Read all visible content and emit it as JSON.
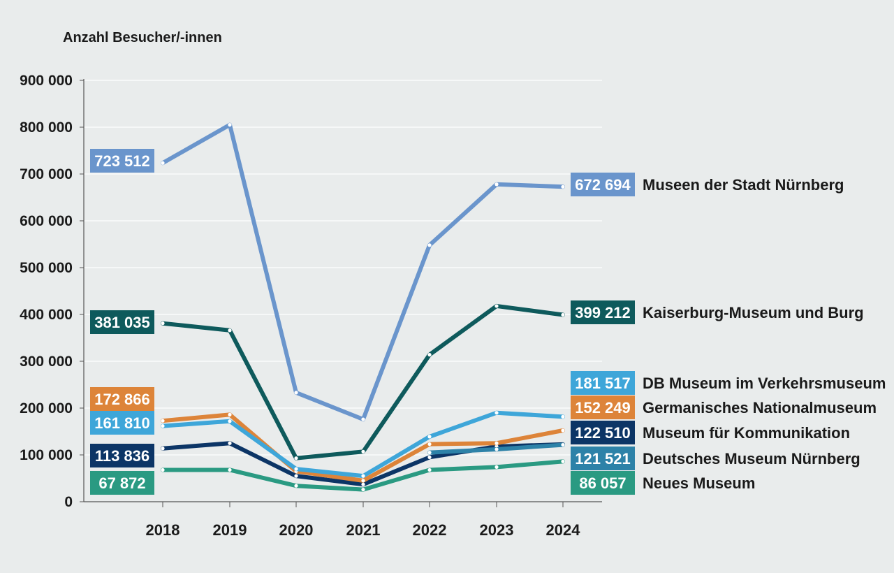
{
  "chart_data": {
    "type": "line",
    "ylabel": "Anzahl Besucher/-innen",
    "x": [
      "2018",
      "2019",
      "2020",
      "2021",
      "2022",
      "2023",
      "2024"
    ],
    "ylim": [
      0,
      900000
    ],
    "yticks": [
      0,
      100000,
      200000,
      300000,
      400000,
      500000,
      600000,
      700000,
      800000,
      900000
    ],
    "ytick_labels": [
      "0",
      "100 000",
      "200 000",
      "300 000",
      "400 000",
      "500 000",
      "600 000",
      "700 000",
      "800 000",
      "900 000"
    ],
    "grid": "horizontal",
    "series": [
      {
        "name": "Museen der Stadt Nürnberg",
        "color": "#6a95cc",
        "values": [
          723512,
          805000,
          233000,
          176000,
          548000,
          678000,
          672694
        ],
        "start_label": "723 512",
        "end_label": "672 694"
      },
      {
        "name": "Kaiserburg-Museum und Burg",
        "color": "#0e5a5c",
        "values": [
          381035,
          366000,
          93000,
          107000,
          314000,
          418000,
          399212
        ],
        "start_label": "381 035",
        "end_label": "399 212"
      },
      {
        "name": "DB Museum im Verkehrsmuseum",
        "color": "#3ea6d9",
        "values": [
          161810,
          172000,
          70000,
          55000,
          139000,
          190000,
          181517
        ],
        "start_label": "161 810",
        "end_label": "181 517"
      },
      {
        "name": "Germanisches Nationalmuseum",
        "color": "#dd8439",
        "values": [
          172866,
          186000,
          65000,
          45000,
          123000,
          125000,
          152249
        ],
        "start_label": "172 866",
        "end_label": "152 249"
      },
      {
        "name": "Museum für Kommunikation",
        "color": "#0c3566",
        "values": [
          113836,
          125000,
          55000,
          37000,
          95000,
          118000,
          122510
        ],
        "start_label": "113 836",
        "end_label": "122 510"
      },
      {
        "name": "Deutsches Museum Nürnberg",
        "color": "#2d82a8",
        "values": [
          null,
          null,
          null,
          null,
          105000,
          112000,
          121521
        ],
        "start_label": "",
        "end_label": "121 521"
      },
      {
        "name": "Neues Museum",
        "color": "#2a9a82",
        "values": [
          67872,
          68000,
          34000,
          26000,
          68000,
          74000,
          86057
        ],
        "start_label": "67 872",
        "end_label": "86 057"
      }
    ]
  }
}
